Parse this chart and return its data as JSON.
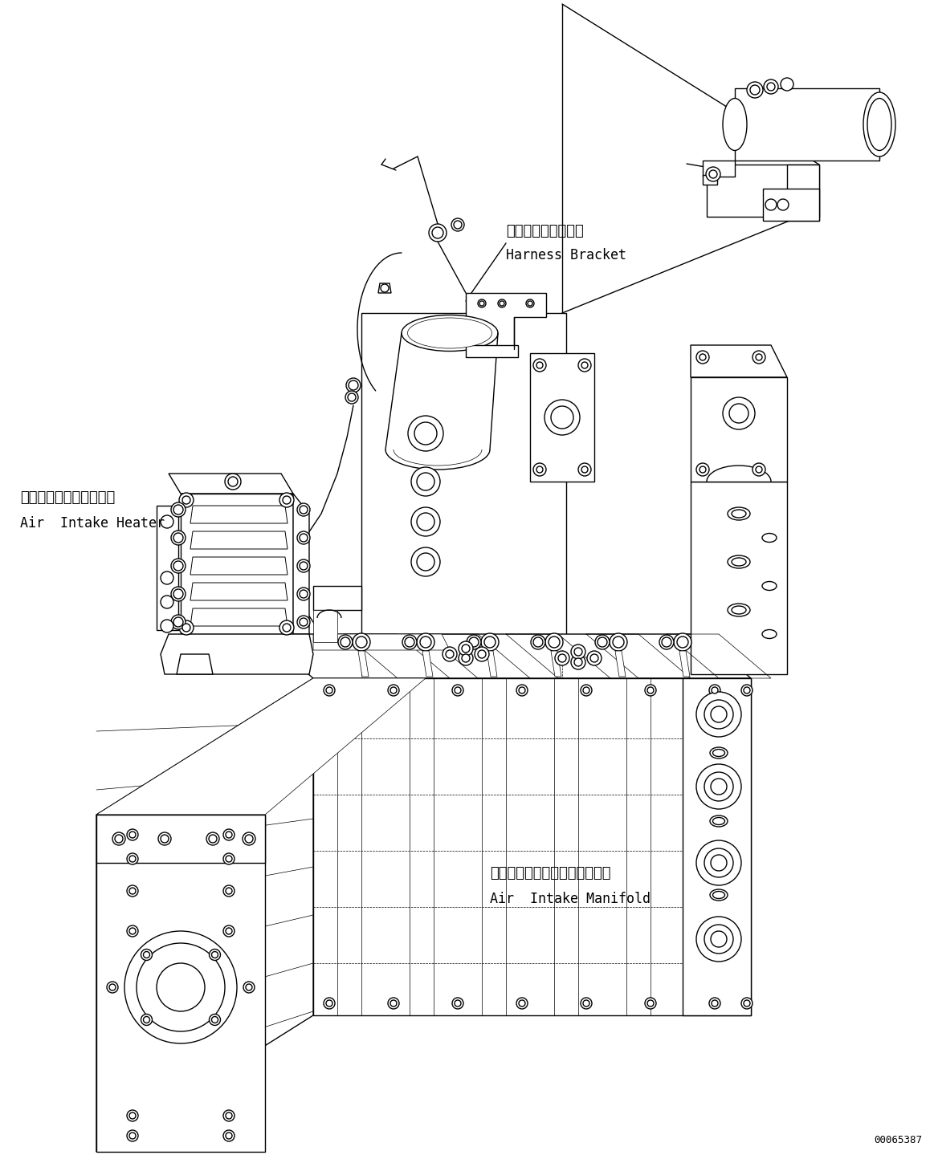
{
  "bg_color": "#ffffff",
  "lc": "#000000",
  "lw": 1.0,
  "lw_thin": 0.5,
  "fig_width": 11.63,
  "fig_height": 14.39,
  "dpi": 100,
  "part_number": "00065387",
  "label_harness_jp": "ハーネスブラケット",
  "label_harness_en": "Harness Bracket",
  "label_heater_jp": "エアーインテークヒータ",
  "label_heater_en": "Air  Intake Heater",
  "label_manifold_jp": "エアーインテークマニホールド",
  "label_manifold_en": "Air  Intake Manifold"
}
